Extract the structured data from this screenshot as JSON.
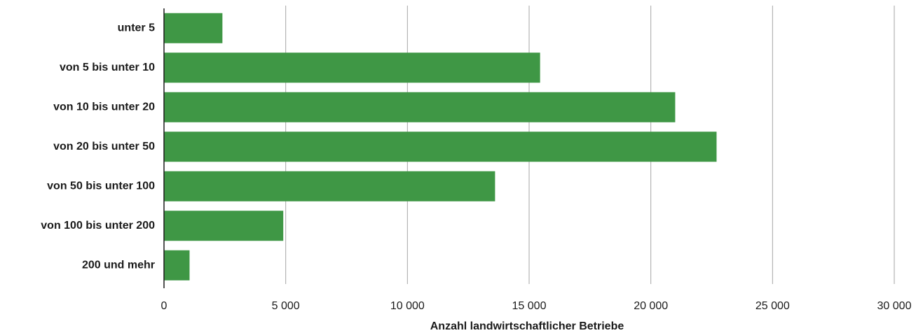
{
  "chart_data": {
    "type": "bar",
    "orientation": "horizontal",
    "categories": [
      "unter 5",
      "von 5 bis unter 10",
      "von 10 bis unter 20",
      "von 20 bis unter 50",
      "von 50 bis unter 100",
      "von 100 bis unter 200",
      "200 und mehr"
    ],
    "values": [
      2400,
      15450,
      21000,
      22700,
      13600,
      4900,
      1050
    ],
    "xlabel": "Anzahl landwirtschaftlicher Betriebe",
    "ylabel": "",
    "xlim": [
      0,
      30000
    ],
    "xticks": [
      0,
      5000,
      10000,
      15000,
      20000,
      25000,
      30000
    ],
    "xtick_labels": [
      "0",
      "5 000",
      "10 000",
      "15 000",
      "20 000",
      "25 000",
      "30 000"
    ],
    "grid": "vertical",
    "legend": "none",
    "colors": {
      "bar": "#3f9745",
      "grid": "#a6a6a6",
      "axis": "#1a1a1a",
      "text": "#1a1a1a"
    }
  }
}
